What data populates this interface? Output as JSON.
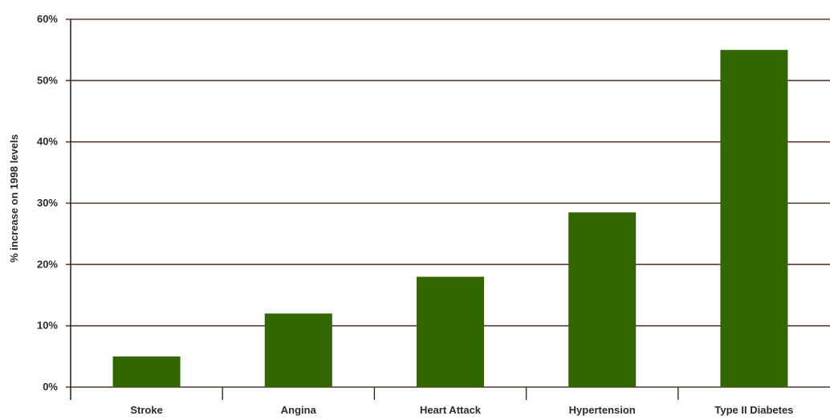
{
  "chart_data": {
    "type": "bar",
    "categories": [
      "Stroke",
      "Angina",
      "Heart Attack",
      "Hypertension",
      "Type II Diabetes"
    ],
    "values": [
      5,
      12,
      18,
      28.5,
      55
    ],
    "ylabel": "% increase on 1998 levels",
    "xlabel": "",
    "ylim": [
      0,
      60
    ],
    "yticks": [
      0,
      10,
      20,
      30,
      40,
      50,
      60
    ],
    "ytick_labels": [
      "0%",
      "10%",
      "20%",
      "30%",
      "40%",
      "50%",
      "60%"
    ],
    "grid": true,
    "bar_color": "#336600",
    "grid_color": "#5a3a2e"
  }
}
